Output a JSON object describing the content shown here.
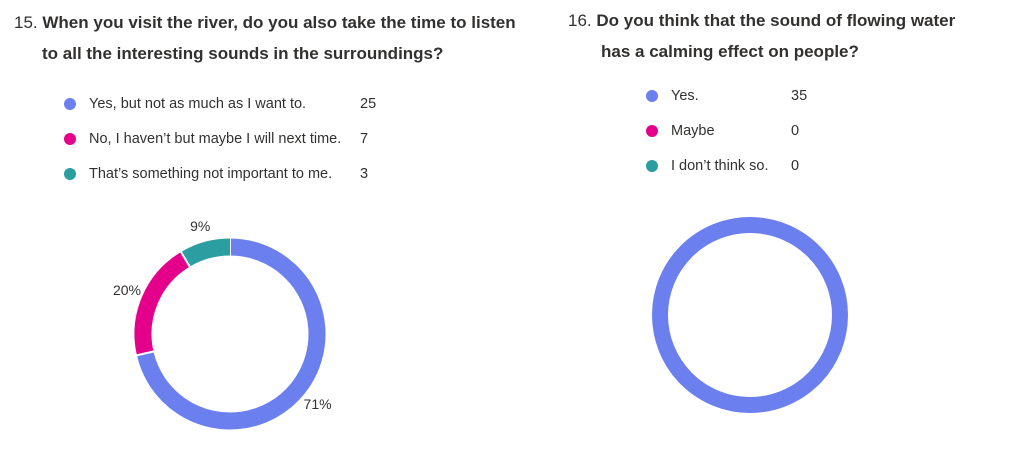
{
  "chart_data": [
    {
      "type": "pie",
      "question_number": "15.",
      "title_line1": "When you visit the river, do you also take the time to listen",
      "title_line2": "to all the interesting sounds in the surroundings?",
      "legend_placement": "top-left",
      "categories": [
        "Yes, but not as much as I want to.",
        "No, I haven’t but maybe I will next time.",
        "That’s something not important to me."
      ],
      "values": [
        25,
        7,
        3
      ],
      "percent_labels": [
        "71%",
        "20%",
        "9%"
      ],
      "colors": [
        "#6b7fef",
        "#e5008b",
        "#2a9ea0"
      ]
    },
    {
      "type": "pie",
      "question_number": "16.",
      "title_line1": "Do you think that the sound of flowing water",
      "title_line2": "has a calming effect on people?",
      "legend_placement": "top-left",
      "categories": [
        "Yes.",
        "Maybe",
        "I don’t think so."
      ],
      "values": [
        35,
        0,
        0
      ],
      "percent_labels": [],
      "colors": [
        "#6b7fef",
        "#e5008b",
        "#2a9ea0"
      ]
    }
  ]
}
